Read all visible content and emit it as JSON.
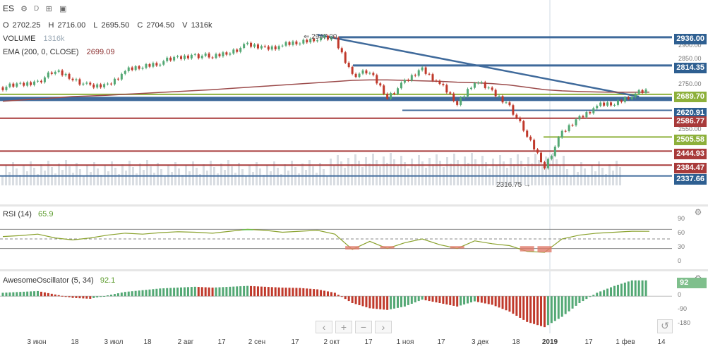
{
  "header": {
    "symbol": "ES",
    "interval": "D",
    "ohlcv": {
      "o_label": "O",
      "o": "2702.25",
      "h_label": "H",
      "h": "2716.00",
      "l_label": "L",
      "l": "2695.50",
      "c_label": "C",
      "c": "2704.50",
      "v_label": "V",
      "v": "1316k"
    },
    "volume_label": "VOLUME",
    "volume_value": "1316k",
    "ema_label": "EMA (200, 0, CLOSE)",
    "ema_value": "2699.09"
  },
  "colors": {
    "up": "#53a874",
    "down": "#c0392b",
    "blue_line": "#3f6a9b",
    "red_line": "#a83a3a",
    "green_line": "#8fb23e",
    "ema": "#9b4a4a",
    "rsi_line": "#8aa22d",
    "volume": "#d9dde2"
  },
  "price_labels": [
    {
      "text": "2936.00",
      "color": "#2e5f91"
    },
    {
      "text": "2814.35",
      "color": "#2e5f91"
    },
    {
      "text": "2689.70",
      "color": "#8db03b"
    },
    {
      "text": "2620.91",
      "color": "#2e5f91"
    },
    {
      "text": "2586.77",
      "color": "#a83a3a"
    },
    {
      "text": "2505.58",
      "color": "#8db03b"
    },
    {
      "text": "2444.93",
      "color": "#a83a3a"
    },
    {
      "text": "2384.47",
      "color": "#a83a3a"
    },
    {
      "text": "2337.66",
      "color": "#2e5f91"
    }
  ],
  "price_axis_ticks": [
    "2900.00",
    "2850.00",
    "2750.00",
    "2550.00"
  ],
  "annotations": {
    "high": "2947.00",
    "low": "2316.75"
  },
  "rsi": {
    "label": "RSI (14)",
    "value": "65.9",
    "ticks": [
      "90",
      "60",
      "30",
      "0"
    ]
  },
  "ao": {
    "label": "AwesomeOscillator (5, 34)",
    "value": "92.1",
    "badge": "92",
    "ticks": [
      "0",
      "-90",
      "-180"
    ]
  },
  "time_axis": [
    "3 июн",
    "18",
    "3 июл",
    "18",
    "2 авг",
    "17",
    "2 сен",
    "17",
    "2 окт",
    "17",
    "1 ноя",
    "17",
    "3 дек",
    "18",
    "2019",
    "17",
    "1 фев",
    "14"
  ],
  "nav": {
    "back": "‹",
    "zoom_in": "+",
    "zoom_out": "−",
    "forward": "›"
  },
  "chart_data": {
    "type": "candlestick",
    "x": [
      "2018-05-22",
      "2018-05-29",
      "2018-06-05",
      "2018-06-12",
      "2018-06-19",
      "2018-06-26",
      "2018-07-03",
      "2018-07-10",
      "2018-07-17",
      "2018-07-24",
      "2018-07-31",
      "2018-08-07",
      "2018-08-14",
      "2018-08-21",
      "2018-08-28",
      "2018-09-04",
      "2018-09-11",
      "2018-09-18",
      "2018-09-25",
      "2018-10-02",
      "2018-10-09",
      "2018-10-16",
      "2018-10-23",
      "2018-10-30",
      "2018-11-06",
      "2018-11-13",
      "2018-11-20",
      "2018-11-27",
      "2018-12-04",
      "2018-12-11",
      "2018-12-18",
      "2018-12-25",
      "2019-01-01",
      "2019-01-08",
      "2019-01-15",
      "2019-01-22",
      "2019-01-29",
      "2019-02-01"
    ],
    "close": [
      2720,
      2730,
      2745,
      2790,
      2760,
      2720,
      2730,
      2790,
      2810,
      2830,
      2845,
      2860,
      2850,
      2875,
      2900,
      2890,
      2900,
      2915,
      2935,
      2925,
      2775,
      2785,
      2680,
      2740,
      2800,
      2735,
      2650,
      2750,
      2700,
      2640,
      2510,
      2380,
      2520,
      2590,
      2640,
      2650,
      2690,
      2704.5
    ],
    "ema_200": [
      2660,
      2665,
      2670,
      2675,
      2680,
      2683,
      2686,
      2690,
      2694,
      2698,
      2702,
      2706,
      2710,
      2715,
      2720,
      2725,
      2730,
      2735,
      2740,
      2745,
      2750,
      2752,
      2752,
      2750,
      2748,
      2746,
      2742,
      2740,
      2736,
      2730,
      2720,
      2710,
      2705,
      2702,
      2700,
      2699,
      2699,
      2699.09
    ],
    "horizontal_levels": [
      2936.0,
      2814.35,
      2689.7,
      2620.91,
      2586.77,
      2505.58,
      2444.93,
      2384.47,
      2337.66
    ],
    "ylim": [
      2300,
      2960
    ],
    "rsi_ylim": [
      0,
      100
    ],
    "rsi_levels": [
      30,
      50,
      60
    ],
    "rsi_values": [
      55,
      57,
      60,
      52,
      48,
      52,
      58,
      62,
      60,
      63,
      65,
      64,
      62,
      66,
      70,
      68,
      64,
      66,
      68,
      60,
      28,
      45,
      30,
      42,
      50,
      38,
      30,
      46,
      40,
      36,
      24,
      22,
      50,
      58,
      62,
      64,
      66,
      65.9
    ],
    "ao_ylim": [
      -200,
      120
    ],
    "ao_values": [
      20,
      25,
      30,
      10,
      -10,
      -15,
      5,
      25,
      35,
      45,
      50,
      55,
      50,
      55,
      60,
      55,
      50,
      48,
      40,
      20,
      -40,
      -70,
      -80,
      -60,
      -20,
      -40,
      -60,
      -30,
      -50,
      -90,
      -150,
      -180,
      -120,
      -40,
      20,
      60,
      92,
      92.1
    ]
  }
}
